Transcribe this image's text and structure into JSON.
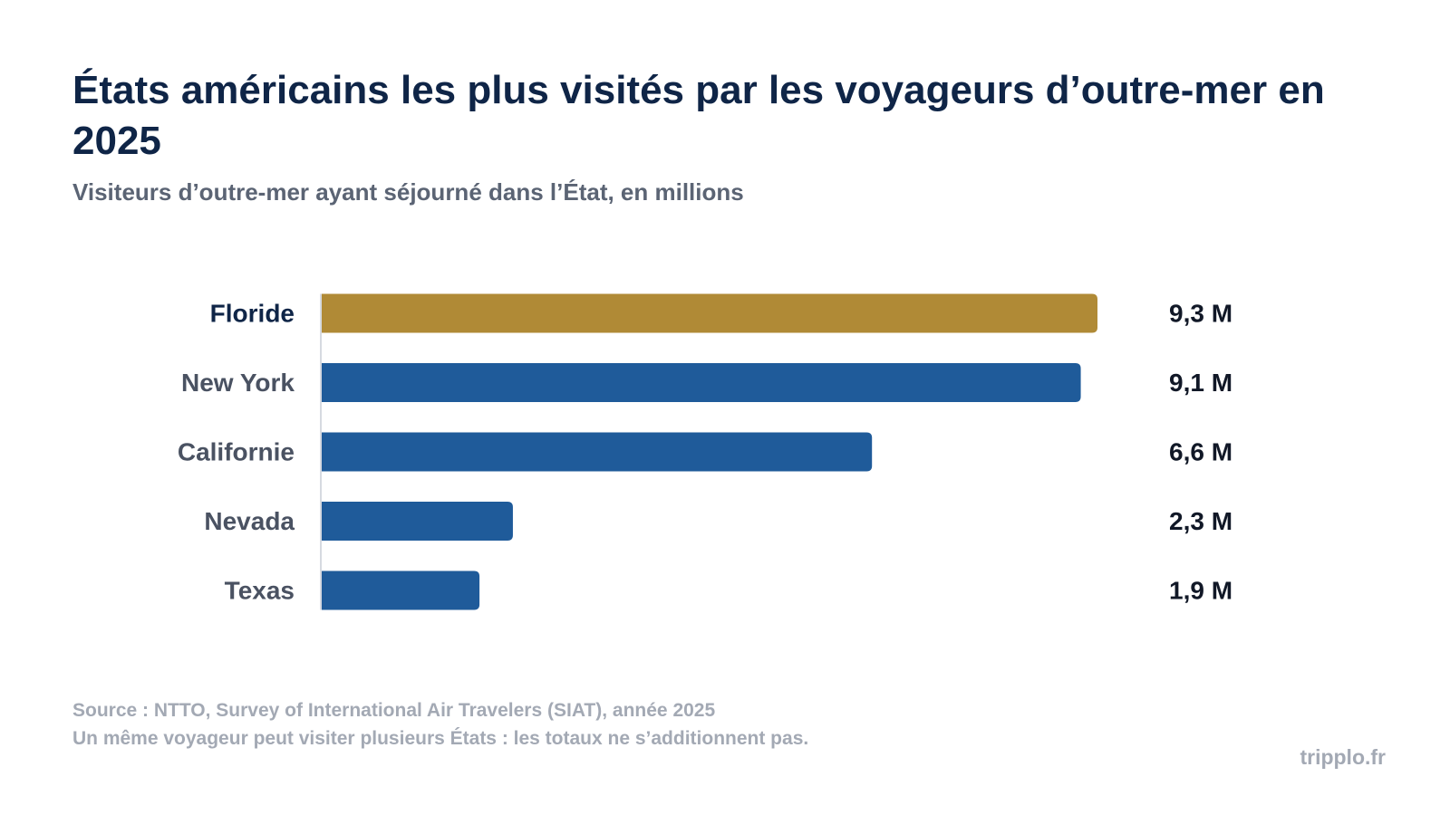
{
  "header": {
    "title": "États américains les plus visités par les voyageurs d’outre-mer en 2025",
    "subtitle": "Visiteurs d’outre-mer ayant séjourné dans l’État, en millions"
  },
  "chart_data": {
    "type": "bar",
    "orientation": "horizontal",
    "title": "États américains les plus visités par les voyageurs d’outre-mer en 2025",
    "subtitle": "Visiteurs d’outre-mer ayant séjourné dans l’État, en millions",
    "categories": [
      "Floride",
      "New York",
      "Californie",
      "Nevada",
      "Texas"
    ],
    "values": [
      9.3,
      9.1,
      6.6,
      2.3,
      1.9
    ],
    "value_labels": [
      "9,3 M",
      "9,1 M",
      "6,6 M",
      "2,3 M",
      "1,9 M"
    ],
    "xlim": [
      0,
      9.3
    ],
    "grid": false,
    "legend": "none",
    "colors": {
      "highlight": "#b08a36",
      "default": "#1f5b9a",
      "highlight_label": "#0f2547",
      "default_label": "#4a5262",
      "value_label": "#111827",
      "axis": "#d6dae1"
    },
    "highlight_index": 0
  },
  "footer": {
    "source": "Source : NTTO, Survey of International Air Travelers (SIAT), année 2025",
    "note": "Un même voyageur peut visiter plusieurs États : les totaux ne s’additionnent pas.",
    "brand": "tripplo.fr"
  }
}
